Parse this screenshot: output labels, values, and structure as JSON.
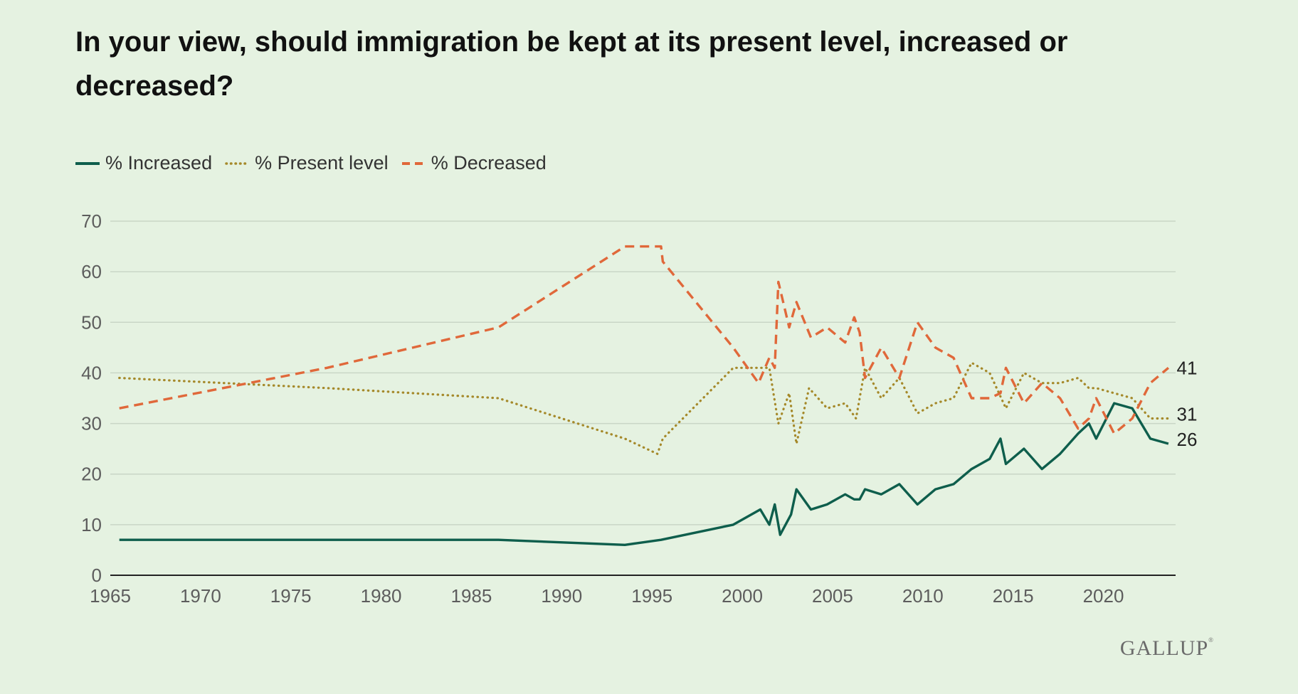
{
  "title": "In your view, should immigration be kept at its present level, increased or decreased?",
  "brand": "GALLUP",
  "colors": {
    "background": "#e5f2e1",
    "increased": "#0e5e4c",
    "present": "#a5892a",
    "decreased": "#e0683a",
    "grid": "#c9d6c6",
    "axis": "#222222",
    "tick": "#5d5d5d"
  },
  "legend": [
    {
      "label": "% Increased",
      "style": "solid",
      "color": "#0e5e4c"
    },
    {
      "label": "% Present level",
      "style": "dotted",
      "color": "#a5892a"
    },
    {
      "label": "% Decreased",
      "style": "dashed",
      "color": "#e0683a"
    }
  ],
  "chart_data": {
    "type": "line",
    "title": "In your view, should immigration be kept at its present level, increased or decreased?",
    "xlabel": "",
    "ylabel": "",
    "xlim": [
      1965,
      2024
    ],
    "ylim": [
      0,
      70
    ],
    "xticks": [
      1965,
      1970,
      1975,
      1980,
      1985,
      1990,
      1995,
      2000,
      2005,
      2010,
      2015,
      2020
    ],
    "yticks": [
      0,
      10,
      20,
      30,
      40,
      50,
      60,
      70
    ],
    "grid": true,
    "legend_position": "top-left",
    "end_labels": [
      "41",
      "31",
      "26"
    ],
    "series": [
      {
        "name": "% Increased",
        "style": "solid",
        "color": "#0e5e4c",
        "points": [
          [
            1965.5,
            7
          ],
          [
            1986.5,
            7
          ],
          [
            1993.5,
            6
          ],
          [
            1995.5,
            7
          ],
          [
            1999.5,
            10
          ],
          [
            2001,
            13
          ],
          [
            2001.5,
            10
          ],
          [
            2001.8,
            14
          ],
          [
            2002.1,
            8
          ],
          [
            2002.7,
            12
          ],
          [
            2003,
            17
          ],
          [
            2003.8,
            13
          ],
          [
            2004.7,
            14
          ],
          [
            2005.7,
            16
          ],
          [
            2006.2,
            15
          ],
          [
            2006.5,
            15
          ],
          [
            2006.8,
            17
          ],
          [
            2007.7,
            16
          ],
          [
            2008.7,
            18
          ],
          [
            2009.7,
            14
          ],
          [
            2010.7,
            17
          ],
          [
            2011.7,
            18
          ],
          [
            2012.7,
            21
          ],
          [
            2013.7,
            23
          ],
          [
            2014.3,
            27
          ],
          [
            2014.6,
            22
          ],
          [
            2015.6,
            25
          ],
          [
            2016.6,
            21
          ],
          [
            2017.6,
            24
          ],
          [
            2018.6,
            28
          ],
          [
            2019.2,
            30
          ],
          [
            2019.6,
            27
          ],
          [
            2020.6,
            34
          ],
          [
            2021.6,
            33
          ],
          [
            2022.6,
            27
          ],
          [
            2023.6,
            26
          ]
        ]
      },
      {
        "name": "% Present level",
        "style": "dotted",
        "color": "#a5892a",
        "points": [
          [
            1965.5,
            39
          ],
          [
            1977,
            37
          ],
          [
            1986.5,
            35
          ],
          [
            1993.5,
            27
          ],
          [
            1995.3,
            24
          ],
          [
            1995.6,
            27
          ],
          [
            1999.5,
            41
          ],
          [
            2001,
            41
          ],
          [
            2001.5,
            41
          ],
          [
            2002,
            30
          ],
          [
            2002.6,
            36
          ],
          [
            2003,
            26
          ],
          [
            2003.7,
            37
          ],
          [
            2004.7,
            33
          ],
          [
            2005.7,
            34
          ],
          [
            2006.3,
            31
          ],
          [
            2006.8,
            41
          ],
          [
            2007.7,
            35
          ],
          [
            2008.7,
            39
          ],
          [
            2009.7,
            32
          ],
          [
            2010.7,
            34
          ],
          [
            2011.7,
            35
          ],
          [
            2012.7,
            42
          ],
          [
            2013.7,
            40
          ],
          [
            2014.6,
            33
          ],
          [
            2015.6,
            40
          ],
          [
            2016.6,
            38
          ],
          [
            2017.6,
            38
          ],
          [
            2018.6,
            39
          ],
          [
            2019.2,
            37
          ],
          [
            2019.6,
            37
          ],
          [
            2020.6,
            36
          ],
          [
            2021.6,
            35
          ],
          [
            2022.6,
            31
          ],
          [
            2023.6,
            31
          ]
        ]
      },
      {
        "name": "% Decreased",
        "style": "dashed",
        "color": "#e0683a",
        "points": [
          [
            1965.5,
            33
          ],
          [
            1977,
            41
          ],
          [
            1986.5,
            49
          ],
          [
            1993.5,
            65
          ],
          [
            1995.5,
            65
          ],
          [
            1995.6,
            62
          ],
          [
            1999.5,
            45
          ],
          [
            2000.9,
            38
          ],
          [
            2001.5,
            43
          ],
          [
            2001.8,
            41
          ],
          [
            2002,
            58
          ],
          [
            2002.6,
            49
          ],
          [
            2003,
            54
          ],
          [
            2003.8,
            47
          ],
          [
            2004.7,
            49
          ],
          [
            2005.7,
            46
          ],
          [
            2006.2,
            51
          ],
          [
            2006.5,
            48
          ],
          [
            2006.8,
            39
          ],
          [
            2007.7,
            45
          ],
          [
            2008.7,
            39
          ],
          [
            2009.7,
            50
          ],
          [
            2010.7,
            45
          ],
          [
            2011.7,
            43
          ],
          [
            2012.7,
            35
          ],
          [
            2013.7,
            35
          ],
          [
            2014.3,
            36
          ],
          [
            2014.6,
            41
          ],
          [
            2015.6,
            34
          ],
          [
            2016.6,
            38
          ],
          [
            2017.6,
            35
          ],
          [
            2018.6,
            29
          ],
          [
            2019.2,
            31
          ],
          [
            2019.6,
            35
          ],
          [
            2020.6,
            28
          ],
          [
            2021.6,
            31
          ],
          [
            2022.6,
            38
          ],
          [
            2023.6,
            41
          ]
        ]
      }
    ]
  }
}
